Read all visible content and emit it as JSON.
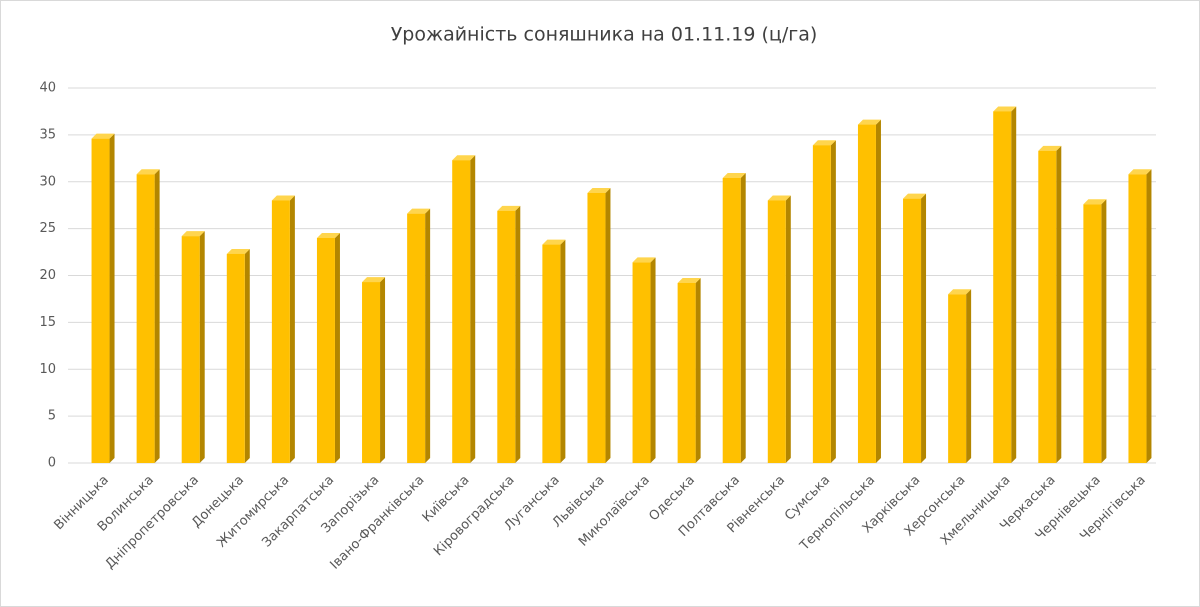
{
  "chart_data": {
    "type": "bar",
    "title": "Урожайність соняшника на 01.11.19  (ц/га)",
    "categories": [
      "Вінницька",
      "Волинська",
      "Дніпропетровська",
      "Донецька",
      "Житомирська",
      "Закарпатська",
      "Запорізька",
      "Івано-Франківська",
      "Київська",
      "Кіровоградська",
      "Луганська",
      "Львівська",
      "Миколаївська",
      "Одеська",
      "Полтавська",
      "Рівненська",
      "Сумська",
      "Тернопільська",
      "Харківська",
      "Херсонська",
      "Хмельницька",
      "Черкаська",
      "Чернівецька",
      "Чернігівська"
    ],
    "values": [
      34.6,
      30.8,
      24.2,
      22.3,
      28.0,
      24.0,
      19.3,
      26.6,
      32.3,
      26.9,
      23.3,
      28.8,
      21.4,
      19.2,
      30.4,
      28.0,
      33.9,
      36.1,
      28.2,
      18.0,
      37.5,
      33.3,
      27.6,
      30.8
    ],
    "color": "#ffc000",
    "ylim": [
      0,
      40
    ],
    "yticks": [
      0,
      5,
      10,
      15,
      20,
      25,
      30,
      35,
      40
    ],
    "grid": true
  }
}
